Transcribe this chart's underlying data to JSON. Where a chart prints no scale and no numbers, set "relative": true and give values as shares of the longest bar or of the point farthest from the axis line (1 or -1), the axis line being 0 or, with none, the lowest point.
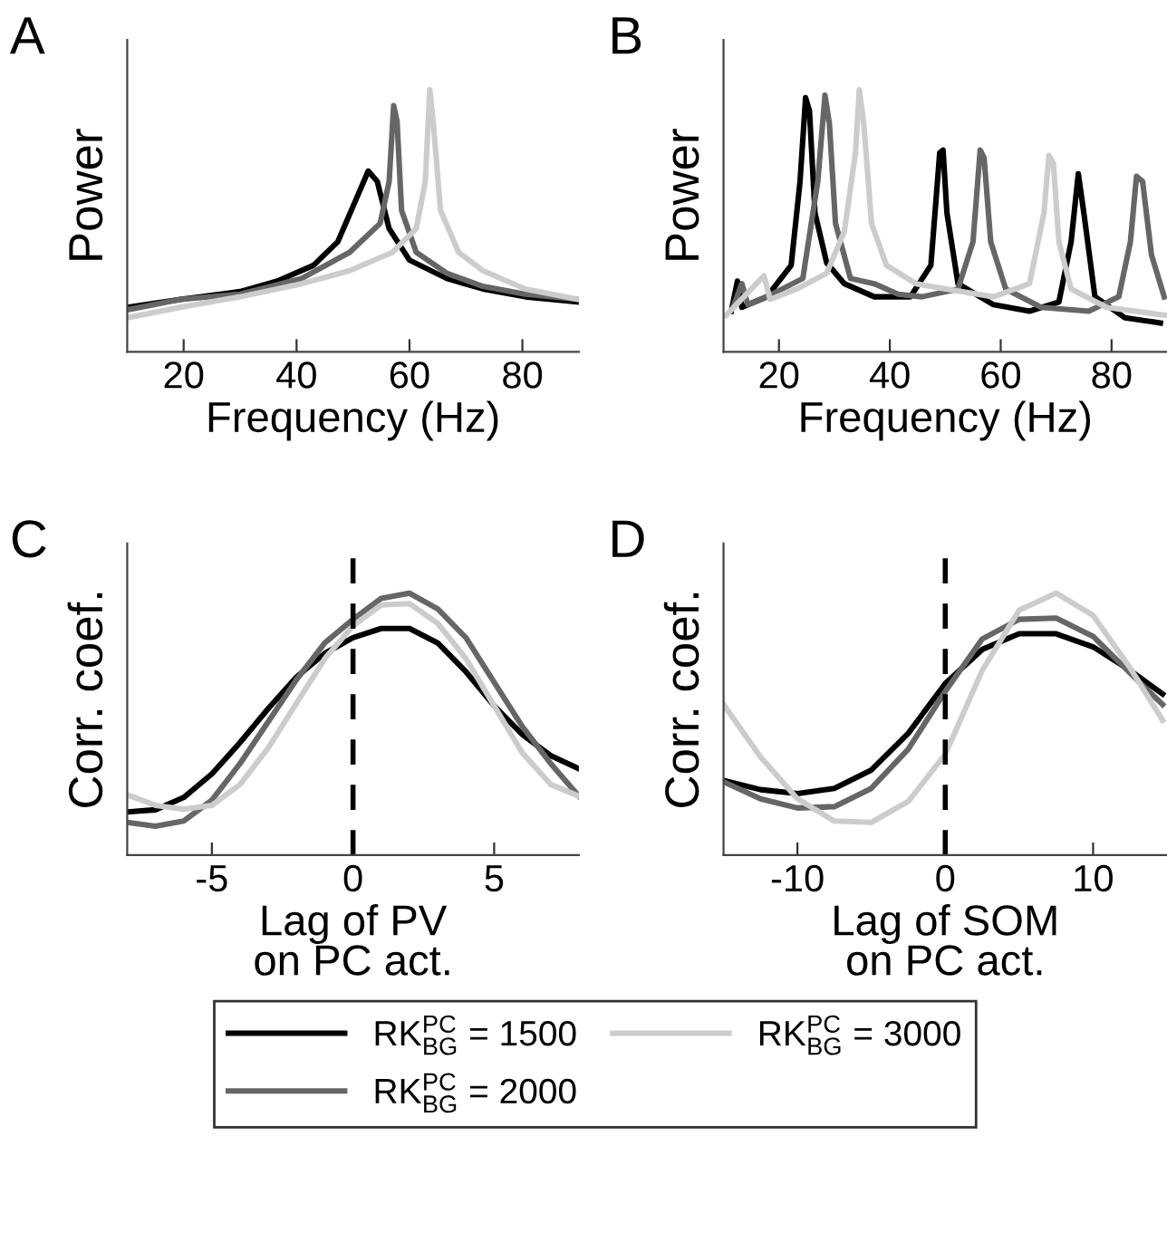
{
  "chart_data": [
    {
      "type": "line",
      "title": "A",
      "xlabel": "Frequency (Hz)",
      "ylabel": "Power",
      "relative": true,
      "xlim": [
        10,
        90
      ],
      "xticks": [
        20,
        40,
        60,
        80
      ],
      "tick_labels": "x",
      "legend": "bottom",
      "series": [
        {
          "name": "RK$^{PC}$$_{BG}$ = 1500",
          "color": "#000000",
          "x": [
            10,
            19.4,
            30,
            36.6,
            43,
            47.3,
            50.5,
            52.7,
            54.3,
            56.4,
            60,
            66.6,
            73,
            80.5,
            90
          ],
          "values": [
            0.17,
            0.2,
            0.23,
            0.27,
            0.33,
            0.42,
            0.58,
            0.69,
            0.65,
            0.47,
            0.35,
            0.28,
            0.24,
            0.21,
            0.19
          ]
        },
        {
          "name": "RK$^{PC}$$_{BG}$ = 2000",
          "color": "#666666",
          "x": [
            10,
            19.4,
            30,
            40.9,
            49.4,
            54.8,
            56.4,
            57.2,
            57.8,
            58.6,
            61.2,
            66.6,
            73,
            80.5,
            90
          ],
          "values": [
            0.16,
            0.2,
            0.22,
            0.28,
            0.38,
            0.49,
            0.65,
            0.94,
            0.88,
            0.54,
            0.38,
            0.3,
            0.25,
            0.22,
            0.2
          ]
        },
        {
          "name": "RK$^{PC}$$_{BG}$ = 3000",
          "color": "#cccccc",
          "x": [
            10,
            19.4,
            30,
            40.9,
            49.4,
            57,
            61.2,
            62.8,
            63.6,
            64.2,
            65.5,
            68.7,
            73,
            80.5,
            90
          ],
          "values": [
            0.13,
            0.17,
            0.21,
            0.26,
            0.31,
            0.38,
            0.47,
            0.65,
            1.0,
            0.88,
            0.54,
            0.38,
            0.31,
            0.24,
            0.2
          ]
        }
      ]
    },
    {
      "type": "line",
      "title": "B",
      "xlabel": "Frequency (Hz)",
      "ylabel": "Power",
      "relative": true,
      "xlim": [
        10,
        90
      ],
      "xticks": [
        20,
        40,
        60,
        80
      ],
      "tick_labels": "x",
      "series": [
        {
          "color": "#000000",
          "x": [
            11.4,
            12.5,
            13.3,
            17.8,
            22.2,
            23.8,
            24.8,
            25.5,
            26.5,
            28.6,
            31.8,
            37.2,
            43.7,
            47.4,
            49,
            49.6,
            50.3,
            52.3,
            58.7,
            65.2,
            70.5,
            72.7,
            74,
            75,
            77,
            82.4,
            88.8
          ],
          "values": [
            0.155,
            0.27,
            0.17,
            0.21,
            0.33,
            0.65,
            0.97,
            0.92,
            0.53,
            0.34,
            0.26,
            0.21,
            0.21,
            0.33,
            0.76,
            0.77,
            0.53,
            0.26,
            0.18,
            0.155,
            0.19,
            0.42,
            0.68,
            0.53,
            0.21,
            0.13,
            0.11
          ]
        },
        {
          "color": "#666666",
          "x": [
            11.9,
            13.3,
            14.4,
            17.8,
            24.3,
            27,
            28.3,
            29.1,
            30.2,
            32.9,
            37.2,
            41.5,
            45.8,
            52.3,
            55,
            56.3,
            57,
            58.2,
            60.9,
            67.3,
            75.9,
            81.3,
            83.4,
            84.5,
            85.6,
            87.2,
            89.5
          ],
          "values": [
            0.18,
            0.26,
            0.18,
            0.21,
            0.28,
            0.65,
            0.98,
            0.87,
            0.49,
            0.28,
            0.26,
            0.22,
            0.21,
            0.24,
            0.42,
            0.77,
            0.74,
            0.42,
            0.24,
            0.17,
            0.155,
            0.21,
            0.42,
            0.67,
            0.65,
            0.37,
            0.21
          ]
        },
        {
          "color": "#cccccc",
          "x": [
            10.5,
            17.3,
            18.4,
            23.2,
            28.6,
            31.8,
            33.8,
            34.5,
            35.3,
            36.7,
            39.4,
            44.7,
            50.1,
            58.7,
            65.2,
            67.8,
            68.7,
            69.5,
            70.5,
            72.7,
            79.1,
            89.5
          ],
          "values": [
            0.14,
            0.29,
            0.2,
            0.24,
            0.3,
            0.46,
            0.76,
            1.0,
            0.87,
            0.49,
            0.33,
            0.26,
            0.24,
            0.21,
            0.26,
            0.53,
            0.75,
            0.72,
            0.42,
            0.24,
            0.17,
            0.14
          ]
        }
      ]
    },
    {
      "type": "line",
      "title": "C",
      "xlabel": "Lag of PV\non PC act.",
      "ylabel": "Corr. coef.",
      "relative": true,
      "xlim": [
        -8,
        8
      ],
      "xticks": [
        -5,
        0,
        5
      ],
      "tick_labels": "x",
      "x": [
        -8,
        -7,
        -6,
        -5,
        -4,
        -3,
        -2,
        -1,
        0,
        1,
        2,
        3,
        4,
        5,
        6,
        7,
        8
      ],
      "ref_lines": [
        {
          "axis": "x",
          "value": 0,
          "color": "#000000",
          "line_style": "dashed"
        }
      ],
      "series": [
        {
          "color": "#000000",
          "values": [
            0.165,
            0.173,
            0.22,
            0.31,
            0.43,
            0.56,
            0.68,
            0.77,
            0.83,
            0.865,
            0.865,
            0.81,
            0.7,
            0.57,
            0.46,
            0.38,
            0.33
          ]
        },
        {
          "color": "#666666",
          "values": [
            0.125,
            0.11,
            0.13,
            0.21,
            0.35,
            0.51,
            0.67,
            0.81,
            0.9,
            0.98,
            1.0,
            0.94,
            0.83,
            0.66,
            0.49,
            0.35,
            0.225
          ]
        },
        {
          "color": "#cccccc",
          "values": [
            0.23,
            0.19,
            0.175,
            0.19,
            0.27,
            0.41,
            0.58,
            0.75,
            0.875,
            0.955,
            0.96,
            0.885,
            0.75,
            0.57,
            0.39,
            0.27,
            0.225
          ]
        }
      ]
    },
    {
      "type": "line",
      "title": "D",
      "xlabel": "Lag of SOM\non PC act.",
      "ylabel": "Corr. coef.",
      "relative": true,
      "xlim": [
        -15,
        15
      ],
      "xticks": [
        -10,
        0,
        10
      ],
      "tick_labels": "x",
      "x": [
        -15,
        -12.5,
        -10,
        -7.5,
        -5,
        -2.5,
        0,
        2.5,
        5,
        7.5,
        10,
        12.5,
        14.7
      ],
      "ref_lines": [
        {
          "axis": "x",
          "value": 0,
          "color": "#000000",
          "line_style": "dashed"
        }
      ],
      "series": [
        {
          "color": "#000000",
          "values": [
            0.285,
            0.25,
            0.235,
            0.255,
            0.325,
            0.465,
            0.655,
            0.785,
            0.845,
            0.845,
            0.795,
            0.705,
            0.615
          ]
        },
        {
          "color": "#666666",
          "values": [
            0.28,
            0.215,
            0.18,
            0.185,
            0.255,
            0.405,
            0.625,
            0.825,
            0.9,
            0.905,
            0.835,
            0.695,
            0.575
          ]
        },
        {
          "color": "#cccccc",
          "values": [
            0.575,
            0.375,
            0.215,
            0.13,
            0.125,
            0.205,
            0.385,
            0.705,
            0.935,
            1.0,
            0.915,
            0.715,
            0.515
          ]
        }
      ]
    }
  ]
}
